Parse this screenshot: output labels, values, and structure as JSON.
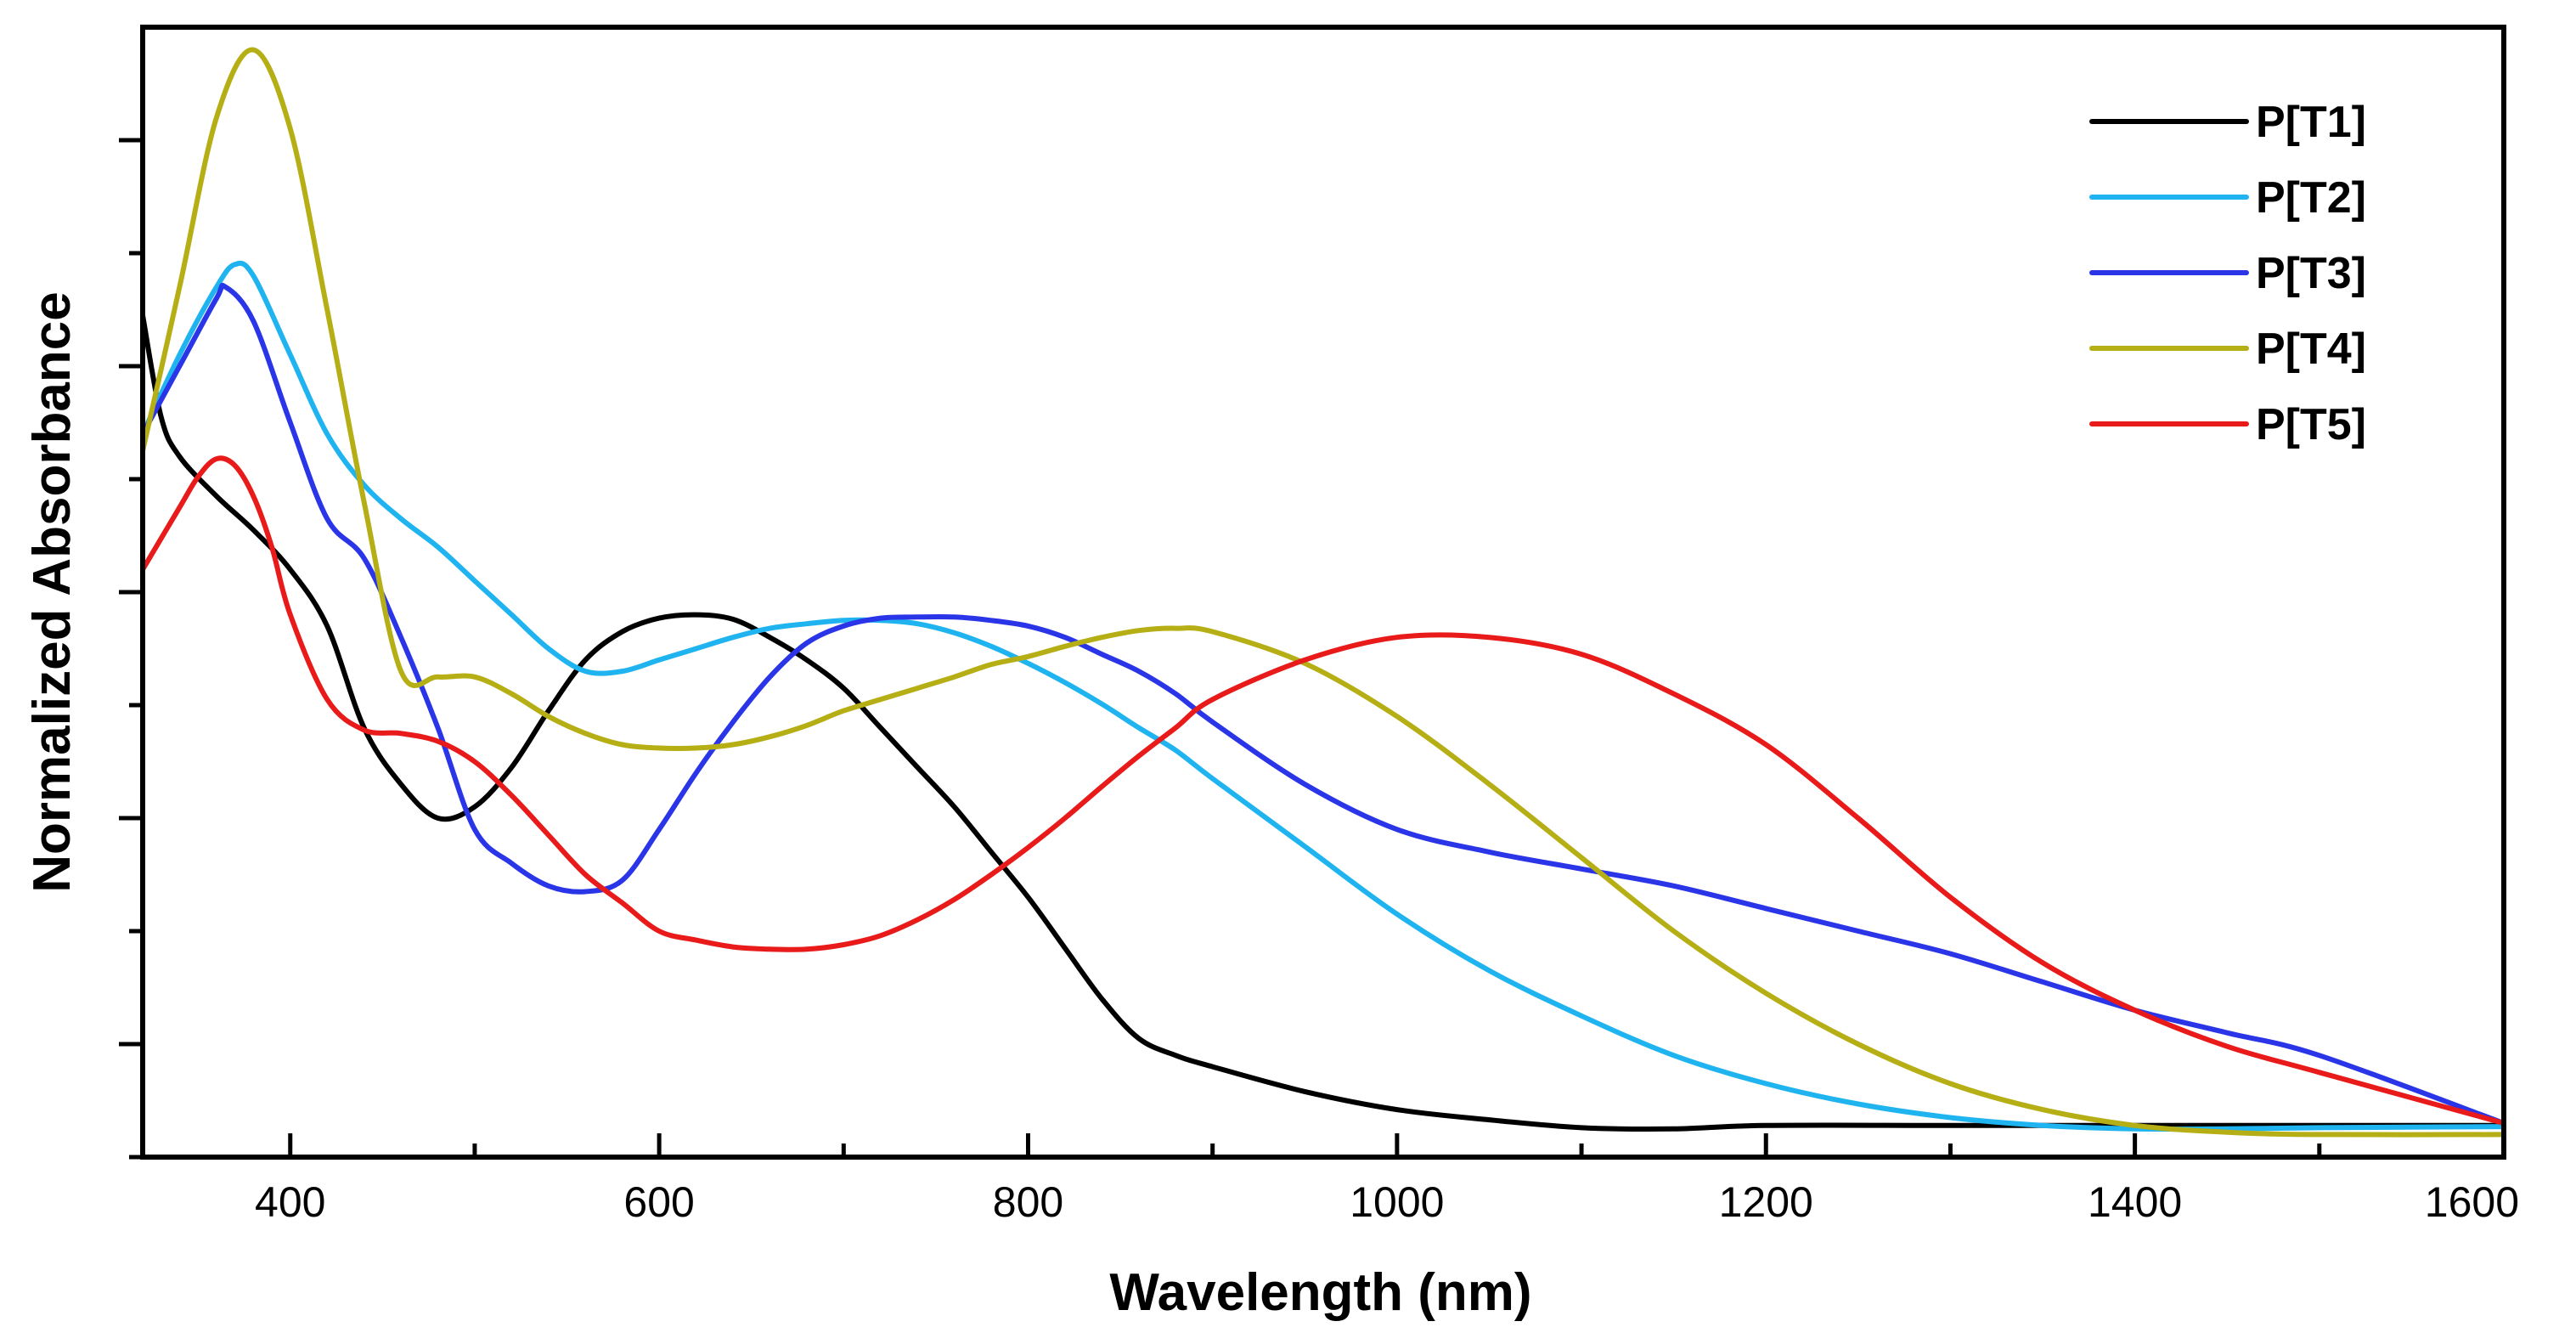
{
  "chart_data": {
    "type": "line",
    "title": "",
    "xlabel": "Wavelength (nm)",
    "ylabel": "Normalized Absorbance",
    "xlim": [
      320,
      1600
    ],
    "ylim": [
      0,
      1
    ],
    "x_ticks": [
      400,
      600,
      800,
      1000,
      1200,
      1400,
      1600
    ],
    "x_minor_ticks": [
      500,
      700,
      900,
      1100,
      1300,
      1500
    ],
    "y_ticks": [
      0,
      0.1,
      0.2,
      0.3,
      0.4,
      0.5,
      0.6,
      0.7,
      0.8,
      0.9
    ],
    "y_tick_labels_shown": false,
    "grid": false,
    "legend_position": "top-right",
    "series": [
      {
        "name": "P[T1]",
        "color": "#000000",
        "x": [
          320,
          330,
          340,
          360,
          380,
          400,
          420,
          440,
          460,
          480,
          500,
          520,
          540,
          560,
          580,
          600,
          620,
          640,
          660,
          680,
          700,
          720,
          740,
          760,
          780,
          800,
          820,
          840,
          860,
          880,
          900,
          950,
          1000,
          1050,
          1100,
          1150,
          1200,
          1300,
          1400,
          1500,
          1600
        ],
        "y": [
          0.745,
          0.655,
          0.62,
          0.585,
          0.555,
          0.52,
          0.47,
          0.38,
          0.33,
          0.3,
          0.31,
          0.345,
          0.395,
          0.44,
          0.465,
          0.477,
          0.48,
          0.476,
          0.46,
          0.44,
          0.415,
          0.38,
          0.345,
          0.31,
          0.27,
          0.23,
          0.185,
          0.14,
          0.105,
          0.09,
          0.08,
          0.058,
          0.042,
          0.033,
          0.026,
          0.025,
          0.028,
          0.028,
          0.028,
          0.028,
          0.028
        ]
      },
      {
        "name": "P[T2]",
        "color": "#1fb4f0",
        "x": [
          320,
          340,
          360,
          370,
          380,
          400,
          420,
          440,
          460,
          480,
          500,
          520,
          540,
          560,
          580,
          600,
          620,
          640,
          660,
          680,
          700,
          720,
          740,
          760,
          780,
          800,
          820,
          840,
          860,
          880,
          900,
          950,
          1000,
          1050,
          1100,
          1150,
          1200,
          1250,
          1300,
          1350,
          1400,
          1450,
          1500,
          1600
        ],
        "y": [
          0.64,
          0.71,
          0.77,
          0.79,
          0.78,
          0.71,
          0.64,
          0.595,
          0.565,
          0.54,
          0.51,
          0.48,
          0.45,
          0.43,
          0.43,
          0.44,
          0.45,
          0.46,
          0.468,
          0.472,
          0.475,
          0.475,
          0.472,
          0.464,
          0.452,
          0.437,
          0.42,
          0.401,
          0.38,
          0.36,
          0.335,
          0.275,
          0.215,
          0.165,
          0.125,
          0.09,
          0.065,
          0.047,
          0.035,
          0.028,
          0.025,
          0.025,
          0.026,
          0.027
        ]
      },
      {
        "name": "P[T3]",
        "color": "#2a35e8",
        "x": [
          320,
          340,
          360,
          365,
          380,
          400,
          420,
          440,
          460,
          480,
          500,
          520,
          540,
          560,
          580,
          600,
          620,
          640,
          660,
          680,
          700,
          720,
          740,
          760,
          780,
          800,
          820,
          840,
          860,
          880,
          900,
          950,
          1000,
          1050,
          1100,
          1150,
          1200,
          1250,
          1300,
          1350,
          1400,
          1450,
          1500,
          1600
        ],
        "y": [
          0.64,
          0.7,
          0.76,
          0.77,
          0.74,
          0.65,
          0.565,
          0.53,
          0.46,
          0.38,
          0.29,
          0.26,
          0.24,
          0.235,
          0.245,
          0.29,
          0.34,
          0.385,
          0.425,
          0.455,
          0.47,
          0.477,
          0.478,
          0.478,
          0.475,
          0.47,
          0.46,
          0.445,
          0.43,
          0.41,
          0.385,
          0.33,
          0.29,
          0.27,
          0.255,
          0.24,
          0.22,
          0.2,
          0.18,
          0.155,
          0.13,
          0.11,
          0.09,
          0.03
        ]
      },
      {
        "name": "P[T4]",
        "color": "#b5ae14",
        "x": [
          320,
          340,
          360,
          380,
          400,
          420,
          440,
          460,
          480,
          500,
          520,
          540,
          560,
          580,
          600,
          620,
          640,
          660,
          680,
          700,
          720,
          740,
          760,
          780,
          800,
          820,
          840,
          860,
          880,
          900,
          950,
          1000,
          1050,
          1100,
          1150,
          1200,
          1250,
          1300,
          1350,
          1400,
          1450,
          1500,
          1600
        ],
        "y": [
          0.625,
          0.77,
          0.92,
          0.98,
          0.91,
          0.75,
          0.58,
          0.43,
          0.425,
          0.425,
          0.41,
          0.39,
          0.375,
          0.365,
          0.362,
          0.362,
          0.365,
          0.372,
          0.382,
          0.395,
          0.405,
          0.415,
          0.425,
          0.436,
          0.443,
          0.452,
          0.46,
          0.466,
          0.468,
          0.465,
          0.437,
          0.39,
          0.33,
          0.265,
          0.2,
          0.145,
          0.1,
          0.065,
          0.042,
          0.028,
          0.022,
          0.02,
          0.02
        ]
      },
      {
        "name": "P[T5]",
        "color": "#e81a1a",
        "x": [
          320,
          340,
          350,
          360,
          370,
          380,
          390,
          400,
          420,
          440,
          460,
          480,
          500,
          520,
          540,
          560,
          580,
          600,
          620,
          640,
          660,
          680,
          700,
          720,
          740,
          760,
          780,
          800,
          820,
          840,
          860,
          880,
          900,
          950,
          1000,
          1050,
          1100,
          1150,
          1200,
          1250,
          1300,
          1350,
          1400,
          1450,
          1500,
          1600
        ],
        "y": [
          0.52,
          0.575,
          0.602,
          0.618,
          0.612,
          0.585,
          0.54,
          0.48,
          0.405,
          0.378,
          0.375,
          0.368,
          0.35,
          0.32,
          0.285,
          0.25,
          0.225,
          0.2,
          0.192,
          0.186,
          0.184,
          0.184,
          0.188,
          0.196,
          0.21,
          0.228,
          0.25,
          0.274,
          0.3,
          0.328,
          0.355,
          0.38,
          0.405,
          0.44,
          0.46,
          0.46,
          0.445,
          0.41,
          0.365,
          0.3,
          0.23,
          0.172,
          0.13,
          0.098,
          0.075,
          0.03
        ]
      }
    ]
  }
}
